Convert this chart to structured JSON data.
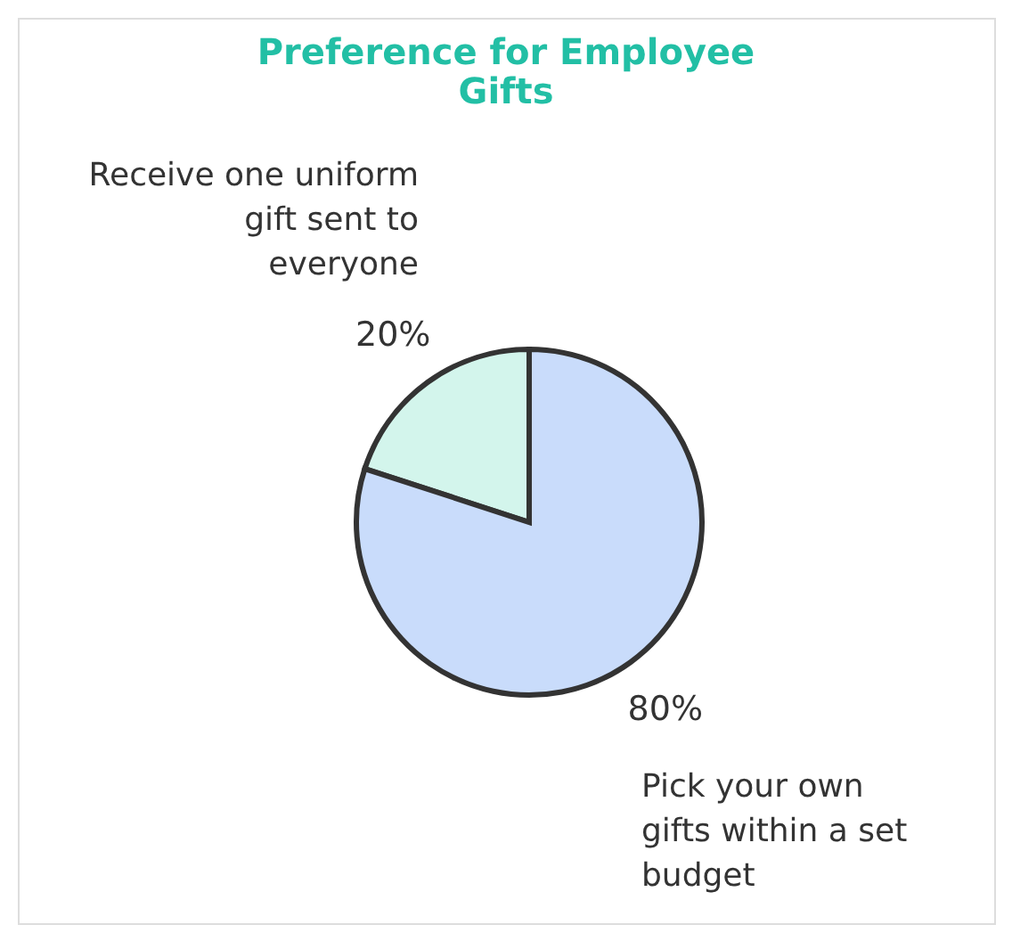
{
  "chart_data": {
    "type": "pie",
    "title": "Preference for Employee Gifts",
    "categories": [
      "Receive one uniform gift sent to everyone",
      "Pick your own gifts within a set budget"
    ],
    "values": [
      20,
      80
    ],
    "colors": [
      "#d3f5ec",
      "#c9dcfb"
    ],
    "value_labels": [
      "20%",
      "80%"
    ],
    "legend": false
  }
}
